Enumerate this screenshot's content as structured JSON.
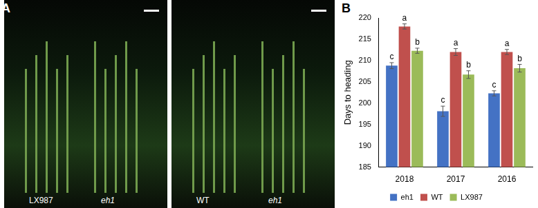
{
  "panel_labels": [
    "A",
    "B"
  ],
  "photos": [
    {
      "labels": [
        "LX987",
        "eh1"
      ]
    },
    {
      "labels": [
        "WT",
        "eh1"
      ]
    }
  ],
  "chart_data": {
    "type": "bar",
    "y_label": "Days to heading",
    "categories": [
      "2018",
      "2017",
      "2016"
    ],
    "series": [
      {
        "name": "eh1",
        "color": "#4472c4",
        "values": [
          208.8,
          198.1,
          202.3
        ],
        "errors": [
          0.7,
          1.2,
          0.6
        ],
        "letters": [
          "c",
          "c",
          "c"
        ]
      },
      {
        "name": "WT",
        "color": "#c0504d",
        "values": [
          218.0,
          212.0,
          212.0
        ],
        "errors": [
          0.6,
          0.8,
          0.6
        ],
        "letters": [
          "a",
          "a",
          "a"
        ]
      },
      {
        "name": "LX987",
        "color": "#9bbb59",
        "values": [
          212.3,
          206.7,
          208.2
        ],
        "errors": [
          0.6,
          0.9,
          0.9
        ],
        "letters": [
          "b",
          "b",
          "b"
        ]
      }
    ],
    "ylim": [
      185,
      220
    ],
    "yticks": [
      185,
      190,
      195,
      200,
      205,
      210,
      215,
      220
    ],
    "grid": false,
    "legend": "bottom"
  }
}
